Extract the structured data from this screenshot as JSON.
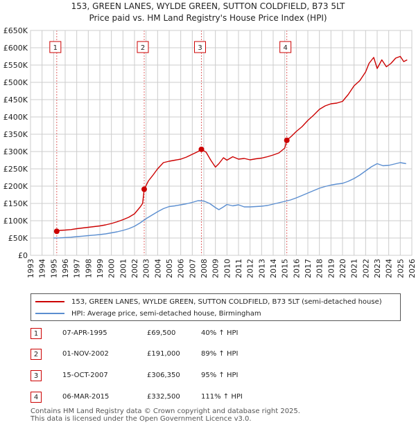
{
  "chart_data": {
    "type": "line",
    "title": "153, GREEN LANES, WYLDE GREEN, SUTTON COLDFIELD, B73 5LT",
    "subtitle": "Price paid vs. HM Land Registry's House Price Index (HPI)",
    "xlabel": "",
    "ylabel": "",
    "xlim": [
      1993,
      2026
    ],
    "ylim": [
      0,
      650000
    ],
    "x_ticks": [
      1993,
      1994,
      1995,
      1996,
      1997,
      1998,
      1999,
      2000,
      2001,
      2002,
      2003,
      2004,
      2005,
      2006,
      2007,
      2008,
      2009,
      2010,
      2011,
      2012,
      2013,
      2014,
      2015,
      2016,
      2017,
      2018,
      2019,
      2020,
      2021,
      2022,
      2023,
      2024,
      2025,
      2026
    ],
    "y_ticks": [
      0,
      50000,
      100000,
      150000,
      200000,
      250000,
      300000,
      350000,
      400000,
      450000,
      500000,
      550000,
      600000,
      650000
    ],
    "y_tick_labels": [
      "£0",
      "£50K",
      "£100K",
      "£150K",
      "£200K",
      "£250K",
      "£300K",
      "£350K",
      "£400K",
      "£450K",
      "£500K",
      "£550K",
      "£600K",
      "£650K"
    ],
    "grid": true,
    "series": [
      {
        "name": "153, GREEN LANES, WYLDE GREEN, SUTTON COLDFIELD, B73 5LT (semi-detached house)",
        "color": "#cc0000",
        "x": [
          1995.27,
          1995.5,
          1996,
          1996.5,
          1997,
          1997.5,
          1998,
          1998.5,
          1999,
          1999.5,
          2000,
          2000.5,
          2001,
          2001.5,
          2002,
          2002.5,
          2002.7,
          2002.84,
          2003.2,
          2003.6,
          2004,
          2004.5,
          2005,
          2005.5,
          2006,
          2006.5,
          2007,
          2007.5,
          2007.79,
          2008.2,
          2008.6,
          2009,
          2009.3,
          2009.7,
          2010,
          2010.5,
          2011,
          2011.5,
          2012,
          2012.5,
          2013,
          2013.5,
          2014,
          2014.5,
          2015.0,
          2015.18,
          2015.6,
          2016,
          2016.5,
          2017,
          2017.5,
          2018,
          2018.5,
          2019,
          2019.5,
          2020,
          2020.5,
          2021,
          2021.5,
          2022,
          2022.3,
          2022.7,
          2023,
          2023.4,
          2023.8,
          2024.2,
          2024.6,
          2025,
          2025.3,
          2025.6
        ],
        "values": [
          69500,
          72000,
          73000,
          74500,
          77000,
          79000,
          81000,
          83000,
          85000,
          88000,
          92000,
          97000,
          103000,
          110000,
          120000,
          140000,
          150000,
          191000,
          215000,
          232000,
          250000,
          268000,
          272000,
          275000,
          278000,
          284000,
          292000,
          300000,
          306350,
          298000,
          275000,
          255000,
          265000,
          282000,
          275000,
          285000,
          278000,
          280000,
          276000,
          279000,
          281000,
          285000,
          290000,
          296000,
          310000,
          332500,
          345000,
          358000,
          372000,
          390000,
          405000,
          422000,
          432000,
          438000,
          440000,
          445000,
          465000,
          490000,
          505000,
          530000,
          555000,
          572000,
          540000,
          565000,
          545000,
          555000,
          570000,
          575000,
          560000,
          565000
        ]
      },
      {
        "name": "HPI: Average price, semi-detached house, Birmingham",
        "color": "#5b8ed0",
        "x": [
          1995,
          1995.5,
          1996,
          1996.5,
          1997,
          1997.5,
          1998,
          1998.5,
          1999,
          1999.5,
          2000,
          2000.5,
          2001,
          2001.5,
          2002,
          2002.5,
          2003,
          2003.5,
          2004,
          2004.5,
          2005,
          2005.5,
          2006,
          2006.5,
          2007,
          2007.5,
          2008,
          2008.5,
          2009,
          2009.3,
          2009.7,
          2010,
          2010.5,
          2011,
          2011.5,
          2012,
          2012.5,
          2013,
          2013.5,
          2014,
          2014.5,
          2015,
          2015.5,
          2016,
          2016.5,
          2017,
          2017.5,
          2018,
          2018.5,
          2019,
          2019.5,
          2020,
          2020.5,
          2021,
          2021.5,
          2022,
          2022.5,
          2023,
          2023.5,
          2024,
          2024.5,
          2025,
          2025.5
        ],
        "values": [
          50000,
          50500,
          51500,
          52500,
          54000,
          55500,
          57000,
          58500,
          60000,
          62000,
          65000,
          68000,
          72000,
          77000,
          84000,
          94000,
          106000,
          116000,
          126000,
          135000,
          141000,
          143000,
          146000,
          149000,
          153000,
          158000,
          157000,
          150000,
          138000,
          132000,
          140000,
          147000,
          143000,
          146000,
          140000,
          140000,
          141000,
          142000,
          144000,
          148000,
          152000,
          156000,
          160000,
          166000,
          173000,
          180000,
          187000,
          194000,
          199000,
          203000,
          206000,
          208000,
          214000,
          222000,
          232000,
          244000,
          256000,
          265000,
          259000,
          260000,
          264000,
          268000,
          265000
        ]
      }
    ],
    "sales": [
      {
        "num": "1",
        "year": 1995.27,
        "value": 69500
      },
      {
        "num": "2",
        "year": 2002.84,
        "value": 191000
      },
      {
        "num": "3",
        "year": 2007.79,
        "value": 306350
      },
      {
        "num": "4",
        "year": 2015.18,
        "value": 332500
      }
    ]
  },
  "legend": {
    "property_label": "153, GREEN LANES, WYLDE GREEN, SUTTON COLDFIELD, B73 5LT (semi-detached house)",
    "hpi_label": "HPI: Average price, semi-detached house, Birmingham",
    "property_color": "#cc0000",
    "hpi_color": "#5b8ed0"
  },
  "sales_table": [
    {
      "num": "1",
      "date": "07-APR-1995",
      "price": "£69,500",
      "hpi": "40% ↑ HPI"
    },
    {
      "num": "2",
      "date": "01-NOV-2002",
      "price": "£191,000",
      "hpi": "89% ↑ HPI"
    },
    {
      "num": "3",
      "date": "15-OCT-2007",
      "price": "£306,350",
      "hpi": "95% ↑ HPI"
    },
    {
      "num": "4",
      "date": "06-MAR-2015",
      "price": "£332,500",
      "hpi": "111% ↑ HPI"
    }
  ],
  "footer": {
    "line1": "Contains HM Land Registry data © Crown copyright and database right 2025.",
    "line2": "This data is licensed under the Open Government Licence v3.0."
  }
}
